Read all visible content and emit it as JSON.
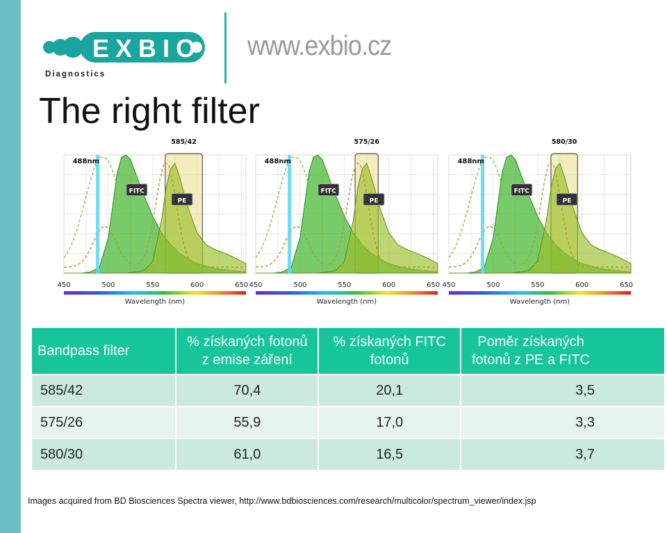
{
  "brand": {
    "logo_text": "EXBIO",
    "logo_subtext": "Diagnostics",
    "url": "www.exbio.cz",
    "accent_color": "#17c59a",
    "logo_color": "#1aa5a0"
  },
  "title": "The right filter",
  "chart_data": [
    {
      "type": "area",
      "title": "585/42",
      "xlabel": "Wavelength (nm)",
      "xlim": [
        450,
        655
      ],
      "ticks": [
        450,
        500,
        550,
        600,
        650
      ],
      "tick_labels": [
        "450",
        "500",
        "550",
        "600",
        "650"
      ],
      "laser_label": "488nm",
      "laser": 488,
      "filter_band": [
        564,
        606
      ],
      "series": [
        {
          "name": "FITC",
          "x": [
            450,
            470,
            480,
            490,
            500,
            510,
            515,
            520,
            525,
            530,
            540,
            550,
            560,
            570,
            580,
            590,
            600,
            620,
            640,
            655
          ],
          "y": [
            0,
            0,
            0.01,
            0.05,
            0.3,
            0.85,
            0.98,
            1.0,
            0.96,
            0.86,
            0.66,
            0.48,
            0.34,
            0.24,
            0.17,
            0.12,
            0.08,
            0.04,
            0.02,
            0.01
          ]
        },
        {
          "name": "PE",
          "x": [
            450,
            520,
            540,
            550,
            560,
            565,
            570,
            575,
            580,
            590,
            600,
            610,
            620,
            640,
            655
          ],
          "y": [
            0,
            0,
            0.02,
            0.1,
            0.45,
            0.72,
            0.88,
            0.93,
            0.82,
            0.55,
            0.34,
            0.24,
            0.2,
            0.14,
            0.08
          ]
        }
      ]
    },
    {
      "type": "area",
      "title": "575/26",
      "xlabel": "Wavelength (nm)",
      "xlim": [
        450,
        655
      ],
      "ticks": [
        450,
        500,
        550,
        600,
        650
      ],
      "tick_labels": [
        "450",
        "500",
        "550",
        "600",
        "650"
      ],
      "laser_label": "488nm",
      "laser": 488,
      "filter_band": [
        562,
        588
      ],
      "series": [
        {
          "name": "FITC",
          "x": [
            450,
            470,
            480,
            490,
            500,
            510,
            515,
            520,
            525,
            530,
            540,
            550,
            560,
            570,
            580,
            590,
            600,
            620,
            640,
            655
          ],
          "y": [
            0,
            0,
            0.01,
            0.05,
            0.3,
            0.85,
            0.98,
            1.0,
            0.96,
            0.86,
            0.66,
            0.48,
            0.34,
            0.24,
            0.17,
            0.12,
            0.08,
            0.04,
            0.02,
            0.01
          ]
        },
        {
          "name": "PE",
          "x": [
            450,
            520,
            540,
            550,
            560,
            565,
            570,
            575,
            580,
            590,
            600,
            610,
            620,
            640,
            655
          ],
          "y": [
            0,
            0,
            0.02,
            0.1,
            0.45,
            0.72,
            0.88,
            0.93,
            0.82,
            0.55,
            0.34,
            0.24,
            0.2,
            0.14,
            0.08
          ]
        }
      ]
    },
    {
      "type": "area",
      "title": "580/30",
      "xlabel": "Wavelength (nm)",
      "xlim": [
        450,
        655
      ],
      "ticks": [
        450,
        500,
        550,
        600,
        650
      ],
      "tick_labels": [
        "450",
        "500",
        "550",
        "600",
        "650"
      ],
      "laser_label": "488nm",
      "laser": 488,
      "filter_band": [
        565,
        595
      ],
      "series": [
        {
          "name": "FITC",
          "x": [
            450,
            470,
            480,
            490,
            500,
            510,
            515,
            520,
            525,
            530,
            540,
            550,
            560,
            570,
            580,
            590,
            600,
            620,
            640,
            655
          ],
          "y": [
            0,
            0,
            0.01,
            0.05,
            0.3,
            0.85,
            0.98,
            1.0,
            0.96,
            0.86,
            0.66,
            0.48,
            0.34,
            0.24,
            0.17,
            0.12,
            0.08,
            0.04,
            0.02,
            0.01
          ]
        },
        {
          "name": "PE",
          "x": [
            450,
            520,
            540,
            550,
            560,
            565,
            570,
            575,
            580,
            590,
            600,
            610,
            620,
            640,
            655
          ],
          "y": [
            0,
            0,
            0.02,
            0.1,
            0.45,
            0.72,
            0.88,
            0.93,
            0.82,
            0.55,
            0.34,
            0.24,
            0.2,
            0.14,
            0.08
          ]
        }
      ]
    },
    {
      "type": "table",
      "columns": [
        "Bandpass filter",
        "% získaných fotonů z emise záření",
        "% získaných FITC fotonů",
        "Poměr získaných fotonů z PE a FITC"
      ],
      "rows": [
        [
          "585/42",
          "70,4",
          "20,1",
          "3,5"
        ],
        [
          "575/26",
          "55,9",
          "17,0",
          "3,3"
        ],
        [
          "580/30",
          "61,0",
          "16,5",
          "3,7"
        ]
      ]
    }
  ],
  "table": {
    "headers": [
      "Bandpass filter",
      "% získaných fotonů z emise záření",
      "% získaných FITC fotonů",
      "Poměr získaných fotonů z PE a FITC"
    ],
    "rows": [
      [
        "585/42",
        "70,4",
        "20,1",
        "3,5"
      ],
      [
        "575/26",
        "55,9",
        "17,0",
        "3,3"
      ],
      [
        "580/30",
        "61,0",
        "16,5",
        "3,7"
      ]
    ]
  },
  "footnote": "Images acquired from BD Biosciences Spectra viewer, http://www.bdbiosciences.com/research/multicolor/spectrum_viewer/index.jsp",
  "colors": {
    "fitc": "#3fb52a",
    "pe": "#9bbf2a",
    "filter_band": "#e9dc8a",
    "laser": "#5fd8f0",
    "sidebar": "#6cc0c4"
  }
}
